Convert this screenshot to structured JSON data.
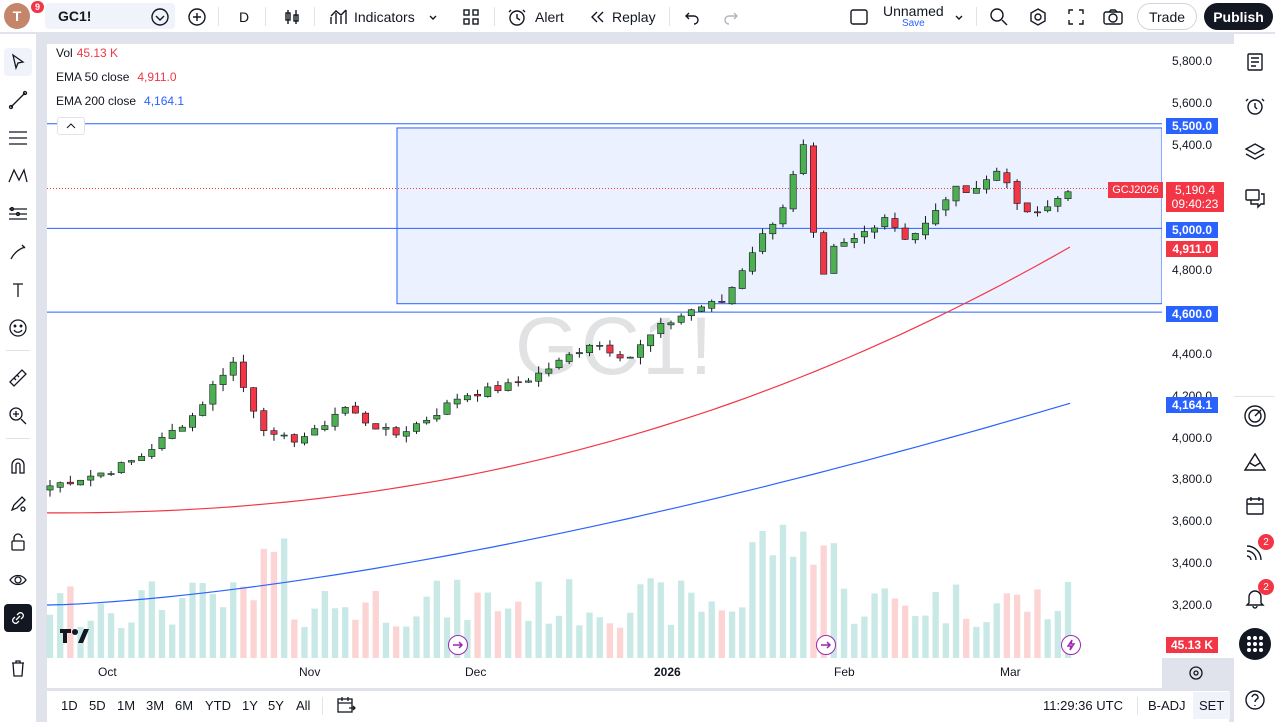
{
  "header": {
    "avatar_letter": "T",
    "avatar_badge": "9",
    "symbol": "GC1!",
    "interval": "D",
    "indicators_label": "Indicators",
    "alert_label": "Alert",
    "replay_label": "Replay",
    "layout_name": "Unnamed",
    "layout_save": "Save",
    "trade_label": "Trade",
    "publish_label": "Publish"
  },
  "legend": {
    "vol_label": "Vol",
    "vol_value": "45.13 K",
    "ema50_label": "EMA 50 close",
    "ema50_value": "4,911.0",
    "ema200_label": "EMA 200 close",
    "ema200_value": "4,164.1"
  },
  "watermark": "GC1!",
  "price_axis": {
    "ticks": [
      "5,800.0",
      "5,600.0",
      "5,400.0",
      "5,000.0",
      "4,800.0",
      "4,400.0",
      "4,200.0",
      "4,000.0",
      "3,800.0",
      "3,600.0",
      "3,400.0",
      "3,200.0"
    ],
    "label_5500": "5,500.0",
    "label_symbol": "GCJ2026",
    "label_current": "5,190.4",
    "label_countdown": "09:40:23",
    "label_5000": "5,000.0",
    "label_ema50": "4,911.0",
    "label_4600": "4,600.0",
    "label_ema200": "4,164.1",
    "label_vol": "45.13 K"
  },
  "time_axis": [
    "Oct",
    "Nov",
    "Dec",
    "2026",
    "Feb",
    "Mar"
  ],
  "bottom": {
    "ranges": [
      "1D",
      "5D",
      "1M",
      "3M",
      "6M",
      "YTD",
      "1Y",
      "5Y",
      "All"
    ],
    "clock": "11:29:36 UTC",
    "adj": "B-ADJ",
    "session": "SET"
  },
  "right_badges": {
    "ideas": "2",
    "alerts": "2"
  },
  "colors": {
    "up": "#4caf50",
    "down": "#f23645",
    "ema50": "#f23645",
    "ema200": "#2962ff",
    "hline": "#2962ff",
    "rect": "#2962ff",
    "accent": "#2962ff"
  },
  "chart_data": {
    "type": "candlestick",
    "symbol": "GC1!",
    "ylim": [
      3100,
      5850
    ],
    "hlines": [
      5500,
      5000,
      4600
    ],
    "ema50_last": 4911.0,
    "ema200_last": 4164.1,
    "current": 5190.4,
    "volume_last": "45.13K"
  }
}
